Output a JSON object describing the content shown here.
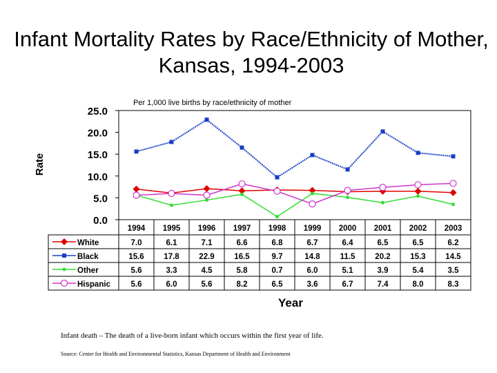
{
  "title": "Infant Mortality Rates by Race/Ethnicity of Mother, Kansas, 1994-2003",
  "subtitle": "Per 1,000 live births by race/ethnicity of mother",
  "footnote": "Infant death – The death of a live-born infant which occurs within the first year of life.",
  "source": "Source: Center for Health and Environmental Statistics, Kansas Department of Health and Environment",
  "chart_data": {
    "type": "line",
    "title": "Infant Mortality Rates by Race/Ethnicity of Mother, Kansas, 1994-2003",
    "xlabel": "Year",
    "ylabel": "Rate",
    "ylim": [
      0,
      25
    ],
    "yticks": [
      "0.0",
      "5.0",
      "10.0",
      "15.0",
      "20.0",
      "25.0"
    ],
    "grid": false,
    "legend": "data-table-left",
    "categories": [
      "1994",
      "1995",
      "1996",
      "1997",
      "1998",
      "1999",
      "2000",
      "2001",
      "2002",
      "2003"
    ],
    "series": [
      {
        "name": "White",
        "color": "#e00000",
        "marker": "diamond",
        "values": [
          7.0,
          6.1,
          7.1,
          6.6,
          6.8,
          6.7,
          6.4,
          6.5,
          6.5,
          6.2
        ],
        "labels": [
          "7.0",
          "6.1",
          "7.1",
          "6.6",
          "6.8",
          "6.7",
          "6.4",
          "6.5",
          "6.5",
          "6.2"
        ]
      },
      {
        "name": "Black",
        "color": "#1a3ec8",
        "marker": "square",
        "values": [
          15.6,
          17.8,
          22.9,
          16.5,
          9.7,
          14.8,
          11.5,
          20.2,
          15.3,
          14.5
        ],
        "labels": [
          "15.6",
          "17.8",
          "22.9",
          "16.5",
          "9.7",
          "14.8",
          "11.5",
          "20.2",
          "15.3",
          "14.5"
        ]
      },
      {
        "name": "Other",
        "color": "#33dd33",
        "marker": "dot",
        "values": [
          5.6,
          3.3,
          4.5,
          5.8,
          0.7,
          6.0,
          5.1,
          3.9,
          5.4,
          3.5
        ],
        "labels": [
          "5.6",
          "3.3",
          "4.5",
          "5.8",
          "0.7",
          "6.0",
          "5.1",
          "3.9",
          "5.4",
          "3.5"
        ]
      },
      {
        "name": "Hispanic",
        "color": "#cc33cc",
        "marker": "circle",
        "values": [
          5.6,
          6.0,
          5.6,
          8.2,
          6.5,
          3.6,
          6.7,
          7.4,
          8.0,
          8.3
        ],
        "labels": [
          "5.6",
          "6.0",
          "5.6",
          "8.2",
          "6.5",
          "3.6",
          "6.7",
          "7.4",
          "8.0",
          "8.3"
        ]
      }
    ]
  }
}
